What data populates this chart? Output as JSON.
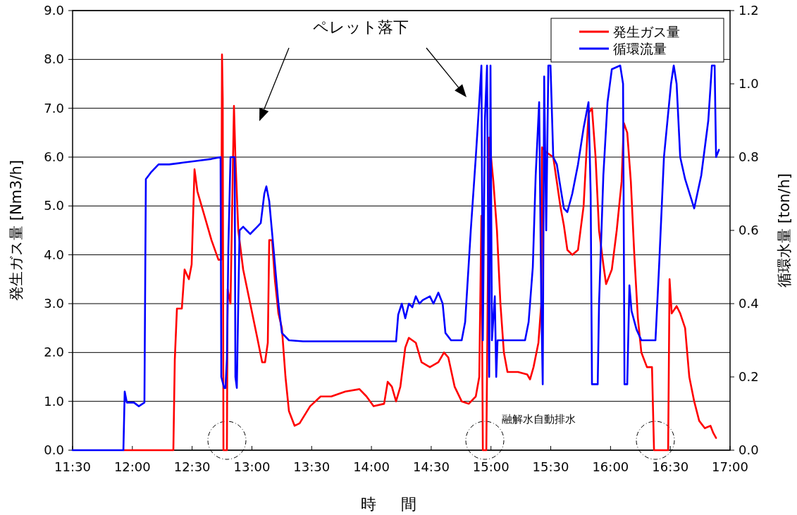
{
  "chart_data": {
    "type": "line",
    "xlabel": "時間",
    "ylabel": "発生ガス量 [Nm3/h]",
    "y2label": "循環水量 [ton/h]",
    "annotations": [
      "ペレット落下",
      "融解水自動排水"
    ],
    "xlim": [
      11.5,
      17
    ],
    "xticks": [
      {
        "value": 11.5,
        "label": "11:30"
      },
      {
        "value": 12,
        "label": "12:00"
      },
      {
        "value": 12.5,
        "label": "12:30"
      },
      {
        "value": 13,
        "label": "13:00"
      },
      {
        "value": 13.5,
        "label": "13:30"
      },
      {
        "value": 14,
        "label": "14:00"
      },
      {
        "value": 14.5,
        "label": "14:30"
      },
      {
        "value": 15,
        "label": "15:00"
      },
      {
        "value": 15.5,
        "label": "15:30"
      },
      {
        "value": 16,
        "label": "16:00"
      },
      {
        "value": 16.5,
        "label": "16:30"
      },
      {
        "value": 17,
        "label": "17:00"
      }
    ],
    "ylim": [
      0,
      9
    ],
    "yticks": [
      {
        "value": 0,
        "label": "0.0"
      },
      {
        "value": 1,
        "label": "1.0"
      },
      {
        "value": 2,
        "label": "2.0"
      },
      {
        "value": 3,
        "label": "3.0"
      },
      {
        "value": 4,
        "label": "4.0"
      },
      {
        "value": 5,
        "label": "5.0"
      },
      {
        "value": 6,
        "label": "6.0"
      },
      {
        "value": 7,
        "label": "7.0"
      },
      {
        "value": 8,
        "label": "8.0"
      },
      {
        "value": 9,
        "label": "9.0"
      }
    ],
    "y2lim": [
      0,
      1.2
    ],
    "y2ticks": [
      {
        "value": 0,
        "label": "0.0"
      },
      0.2,
      0.4,
      0.6,
      0.8,
      {
        "value": 1,
        "label": "1.0"
      },
      1.2
    ],
    "grid": "y",
    "legend": "top right",
    "marker": "none",
    "line_style": "solid",
    "series": [
      {
        "name": "発生ガス量",
        "color": "#ff0000",
        "axis": "y",
        "x": [
          11.93,
          12.343,
          12.355,
          12.373,
          12.414,
          12.437,
          12.473,
          12.496,
          12.52,
          12.544,
          12.603,
          12.662,
          12.72,
          12.744,
          12.75,
          12.756,
          12.762,
          12.791,
          12.797,
          12.821,
          12.85,
          12.862,
          12.886,
          12.927,
          12.986,
          13.045,
          13.086,
          13.11,
          13.133,
          13.145,
          13.169,
          13.192,
          13.222,
          13.251,
          13.281,
          13.31,
          13.357,
          13.399,
          13.487,
          13.575,
          13.664,
          13.782,
          13.9,
          13.959,
          14.018,
          14.106,
          14.136,
          14.171,
          14.206,
          14.242,
          14.283,
          14.313,
          14.371,
          14.419,
          14.489,
          14.56,
          14.607,
          14.643,
          14.696,
          14.755,
          14.814,
          14.873,
          14.902,
          14.92,
          14.932,
          14.961,
          14.985,
          15.02,
          15.05,
          15.079,
          15.108,
          15.138,
          15.226,
          15.303,
          15.327,
          15.356,
          15.397,
          15.421,
          15.427,
          15.462,
          15.521,
          15.58,
          15.61,
          15.639,
          15.68,
          15.728,
          15.775,
          15.816,
          15.845,
          15.875,
          15.904,
          15.94,
          15.963,
          16.011,
          16.052,
          16.093,
          16.111,
          16.14,
          16.17,
          16.199,
          16.229,
          16.258,
          16.305,
          16.347,
          16.364,
          16.482,
          16.494,
          16.512,
          16.553,
          16.583,
          16.624,
          16.659,
          16.7,
          16.742,
          16.789,
          16.836,
          16.86,
          16.883
        ],
        "values": [
          0,
          0,
          1.85,
          2.9,
          2.9,
          3.7,
          3.5,
          3.8,
          5.75,
          5.3,
          4.8,
          4.3,
          3.9,
          3.9,
          8.1,
          7.2,
          0,
          0,
          3.3,
          3.0,
          7.05,
          6.0,
          4.5,
          3.7,
          3.0,
          2.3,
          1.8,
          1.8,
          2.2,
          4.3,
          4.3,
          3.5,
          2.8,
          2.5,
          1.5,
          0.8,
          0.5,
          0.55,
          0.9,
          1.1,
          1.1,
          1.2,
          1.25,
          1.1,
          0.9,
          0.95,
          1.4,
          1.3,
          1.0,
          1.3,
          2.1,
          2.3,
          2.2,
          1.8,
          1.7,
          1.8,
          2.0,
          1.9,
          1.3,
          1.0,
          0.95,
          1.1,
          1.5,
          4.8,
          0,
          0,
          6.4,
          5.5,
          4.5,
          3.0,
          2.0,
          1.6,
          1.6,
          1.55,
          1.45,
          1.7,
          2.2,
          3.0,
          6.2,
          6.1,
          6.0,
          5.0,
          4.6,
          4.1,
          4.0,
          4.1,
          5.0,
          6.9,
          7.0,
          6.0,
          4.5,
          3.8,
          3.4,
          3.7,
          4.5,
          5.5,
          6.7,
          6.5,
          5.5,
          4.0,
          2.7,
          2.0,
          1.7,
          1.7,
          0,
          0,
          3.5,
          2.8,
          2.95,
          2.8,
          2.5,
          1.5,
          1.0,
          0.6,
          0.45,
          0.5,
          0.35,
          0.25
        ]
      },
      {
        "name": "循環流量",
        "color": "#0000ff",
        "axis": "y2",
        "x": [
          11.5,
          11.925,
          11.936,
          11.954,
          12.013,
          12.054,
          12.101,
          12.113,
          12.16,
          12.219,
          12.308,
          12.426,
          12.544,
          12.662,
          12.738,
          12.744,
          12.768,
          12.779,
          12.791,
          12.803,
          12.821,
          12.856,
          12.862,
          12.874,
          12.886,
          12.897,
          12.927,
          12.956,
          12.986,
          13.015,
          13.045,
          13.074,
          13.104,
          13.121,
          13.145,
          13.181,
          13.222,
          13.251,
          13.31,
          13.428,
          13.841,
          14.206,
          14.224,
          14.254,
          14.283,
          14.313,
          14.342,
          14.371,
          14.401,
          14.43,
          14.489,
          14.519,
          14.56,
          14.596,
          14.619,
          14.666,
          14.755,
          14.784,
          14.831,
          14.873,
          14.902,
          14.92,
          14.932,
          14.949,
          14.967,
          14.979,
          14.985,
          14.996,
          15.008,
          15.032,
          15.044,
          15.055,
          15.108,
          15.197,
          15.285,
          15.315,
          15.35,
          15.374,
          15.403,
          15.421,
          15.433,
          15.445,
          15.462,
          15.48,
          15.498,
          15.521,
          15.551,
          15.58,
          15.61,
          15.639,
          15.68,
          15.728,
          15.775,
          15.816,
          15.834,
          15.845,
          15.893,
          15.904,
          15.94,
          15.975,
          16.011,
          16.081,
          16.105,
          16.117,
          16.14,
          16.158,
          16.176,
          16.217,
          16.258,
          16.376,
          16.406,
          16.447,
          16.506,
          16.529,
          16.553,
          16.583,
          16.624,
          16.7,
          16.759,
          16.818,
          16.848,
          16.871,
          16.883,
          16.907
        ],
        "values": [
          0,
          0,
          0.16,
          0.13,
          0.13,
          0.12,
          0.13,
          0.74,
          0.76,
          0.78,
          0.78,
          0.785,
          0.79,
          0.795,
          0.8,
          0.2,
          0.17,
          0.17,
          0.25,
          0.55,
          0.8,
          0.8,
          0.2,
          0.17,
          0.4,
          0.6,
          0.61,
          0.6,
          0.59,
          0.6,
          0.61,
          0.62,
          0.7,
          0.72,
          0.68,
          0.55,
          0.4,
          0.32,
          0.3,
          0.297,
          0.297,
          0.297,
          0.37,
          0.4,
          0.36,
          0.4,
          0.39,
          0.42,
          0.4,
          0.41,
          0.42,
          0.4,
          0.43,
          0.4,
          0.32,
          0.3,
          0.3,
          0.35,
          0.6,
          0.8,
          0.95,
          1.05,
          0.3,
          0.9,
          1.05,
          0.45,
          0.2,
          1.05,
          0.3,
          0.42,
          0.2,
          0.3,
          0.3,
          0.3,
          0.3,
          0.35,
          0.5,
          0.75,
          0.95,
          0.4,
          0.18,
          1.02,
          0.6,
          1.05,
          1.05,
          0.8,
          0.78,
          0.72,
          0.66,
          0.65,
          0.7,
          0.78,
          0.88,
          0.95,
          0.7,
          0.18,
          0.18,
          0.4,
          0.75,
          0.95,
          1.04,
          1.05,
          1.0,
          0.18,
          0.18,
          0.45,
          0.38,
          0.33,
          0.3,
          0.3,
          0.5,
          0.8,
          1.0,
          1.05,
          1.0,
          0.8,
          0.74,
          0.66,
          0.75,
          0.9,
          1.05,
          1.05,
          0.8,
          0.82
        ]
      }
    ]
  }
}
